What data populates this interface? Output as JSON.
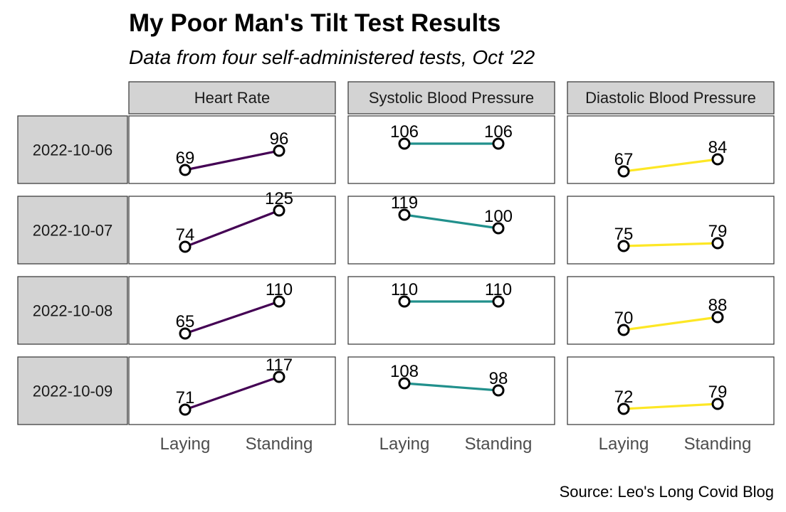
{
  "title": "My Poor Man's Tilt Test Results",
  "subtitle": "Data from four self-administered tests, Oct '22",
  "caption": "Source: Leo's Long Covid Blog",
  "chart_data": {
    "type": "line",
    "layout": "facet-grid",
    "columns": [
      "Heart Rate",
      "Systolic Blood Pressure",
      "Diastolic Blood Pressure"
    ],
    "rows": [
      "2022-10-06",
      "2022-10-07",
      "2022-10-08",
      "2022-10-09"
    ],
    "x": [
      "Laying",
      "Standing"
    ],
    "colors": {
      "Heart Rate": "#440154",
      "Systolic Blood Pressure": "#21908C",
      "Diastolic Blood Pressure": "#FDE725"
    },
    "values": {
      "Heart Rate": [
        [
          69,
          96
        ],
        [
          74,
          125
        ],
        [
          65,
          110
        ],
        [
          71,
          117
        ]
      ],
      "Systolic Blood Pressure": [
        [
          106,
          106
        ],
        [
          119,
          100
        ],
        [
          110,
          110
        ],
        [
          108,
          98
        ]
      ],
      "Diastolic Blood Pressure": [
        [
          67,
          84
        ],
        [
          75,
          79
        ],
        [
          70,
          88
        ],
        [
          72,
          79
        ]
      ]
    },
    "strip_fill": "#d3d3d3",
    "grid": false,
    "legend": "none"
  }
}
